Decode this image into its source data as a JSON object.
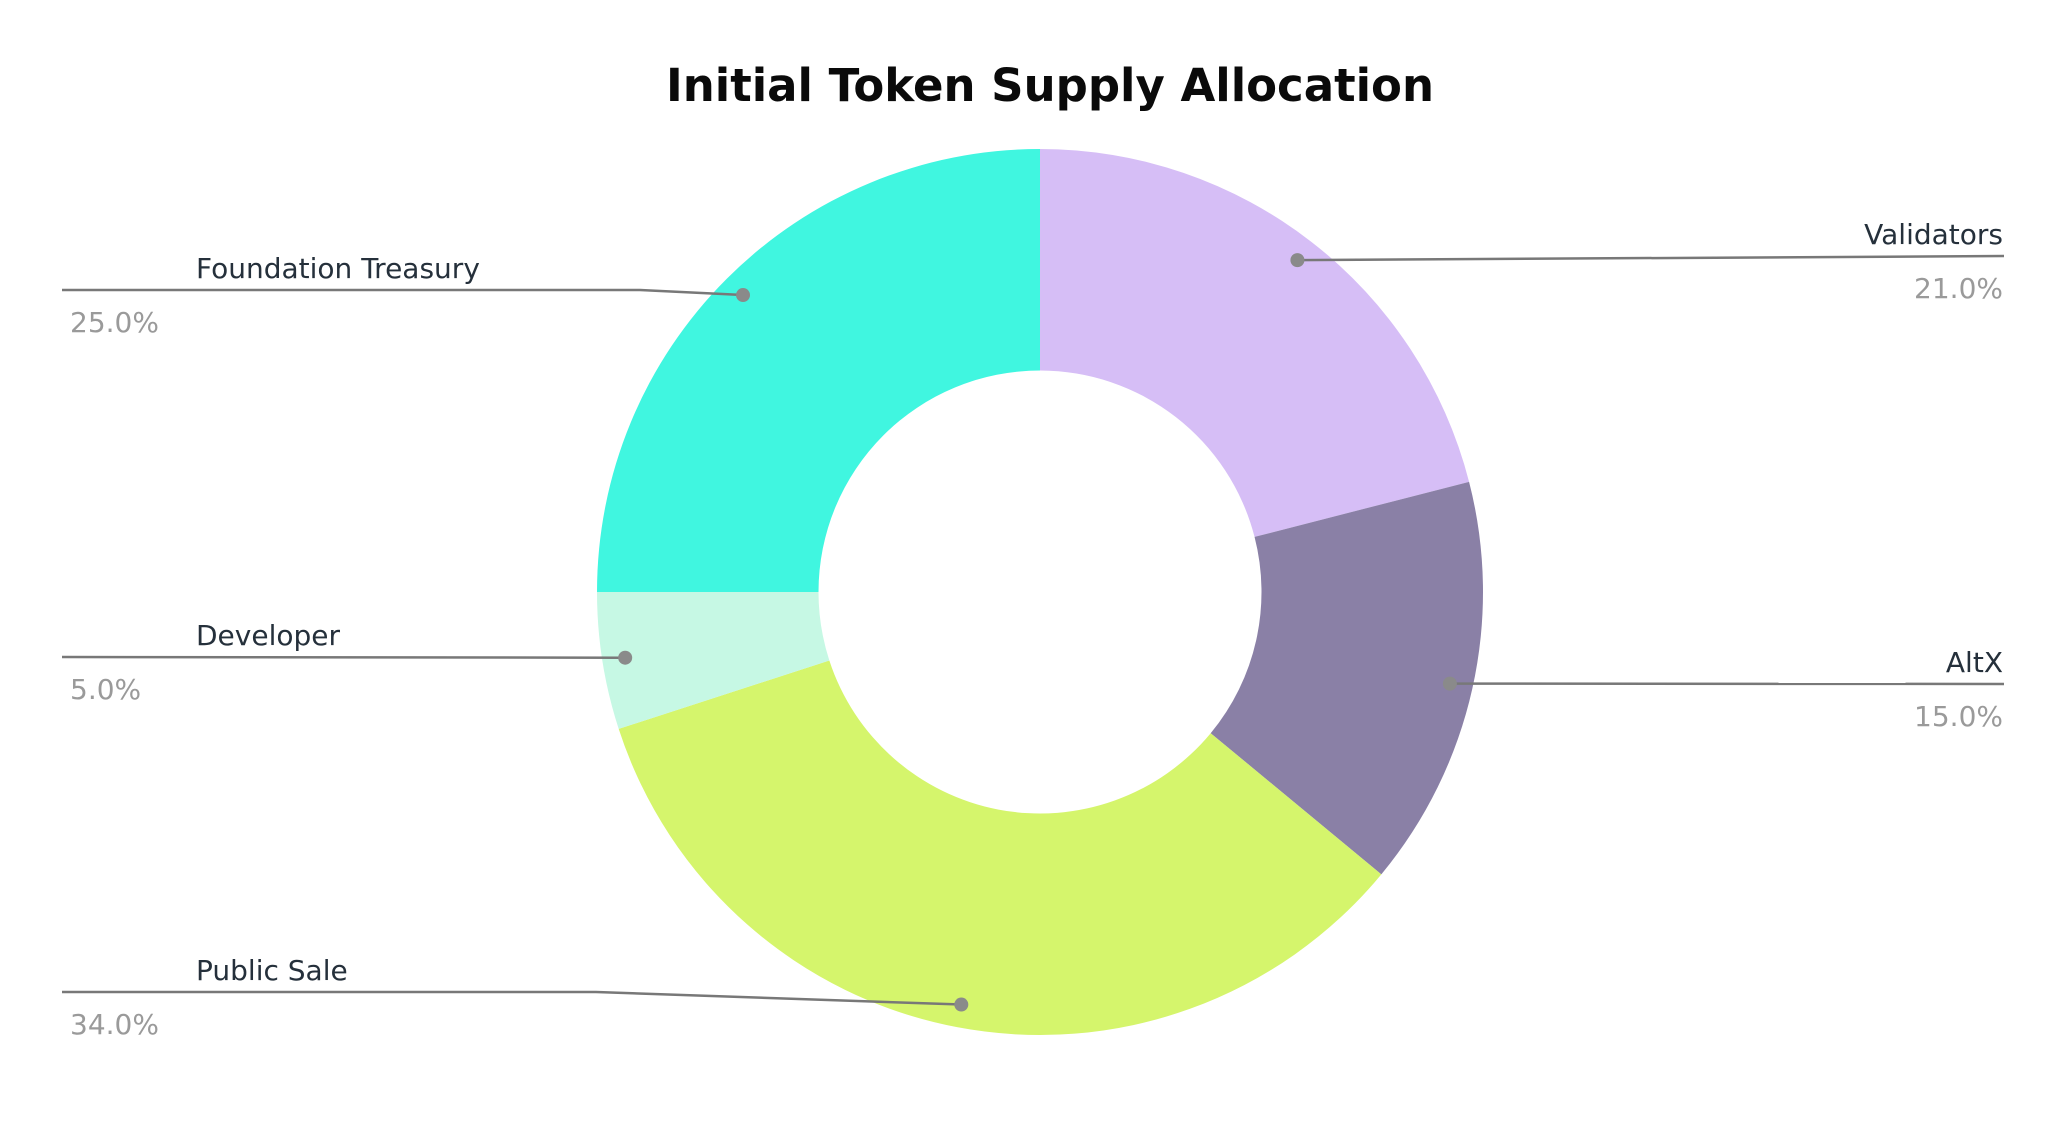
{
  "chart_data": {
    "type": "pie",
    "title": "Initial Token Supply Allocation",
    "hole": 0.5,
    "direction": "clockwise",
    "start_angle": 0,
    "legend": false,
    "labels": [
      "Validators",
      "AltX",
      "Public Sale",
      "Developer",
      "Foundation Treasury"
    ],
    "values": [
      21.0,
      15.0,
      34.0,
      5.0,
      25.0
    ],
    "percent_labels": [
      "21.0%",
      "15.0%",
      "34.0%",
      "5.0%",
      "25.0%"
    ],
    "colors": [
      "#d6bef6",
      "#8a80a6",
      "#d5f56c",
      "#c6f8e4",
      "#40f6e0"
    ]
  },
  "styles": {
    "title_color": "#0a0a0a",
    "name_color": "#25303b",
    "pct_color": "#9a9a9a",
    "line_color": "#787878",
    "dot_color": "#8a8a8a",
    "background": "#ffffff"
  }
}
